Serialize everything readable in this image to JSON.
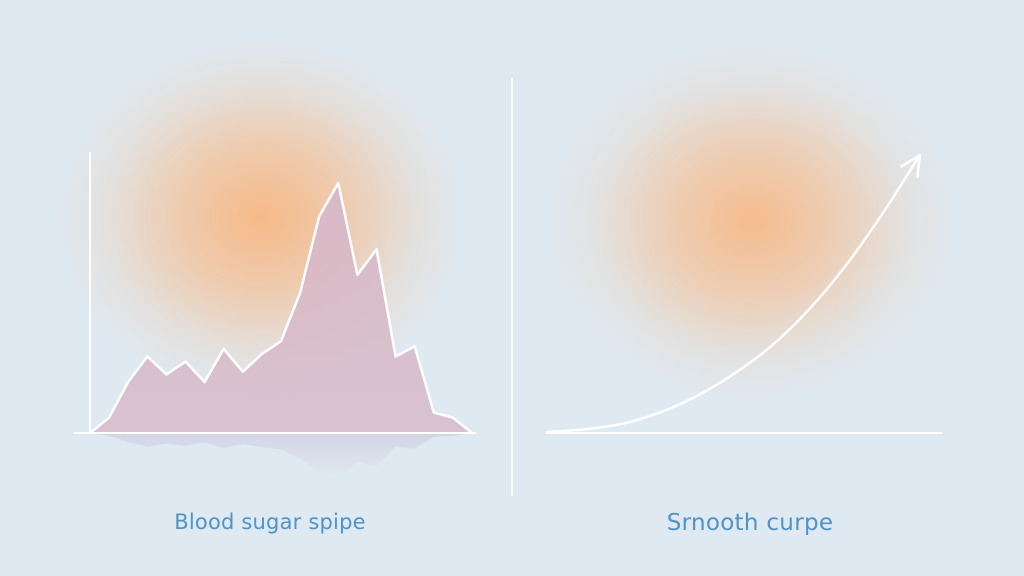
{
  "left_panel": {
    "caption": "Blood sugar spipe",
    "chart_data": {
      "type": "area",
      "x": [
        0,
        1,
        2,
        3,
        4,
        5,
        6,
        7,
        8,
        9,
        10,
        11,
        12,
        13,
        14,
        15,
        16,
        17,
        18,
        19,
        20
      ],
      "values": [
        0,
        6,
        20,
        30,
        23,
        28,
        20,
        33,
        24,
        31,
        36,
        55,
        85,
        98,
        62,
        72,
        30,
        34,
        8,
        6,
        0
      ],
      "title": "",
      "xlabel": "",
      "ylabel": "",
      "ylim": [
        0,
        100
      ],
      "grid": false
    }
  },
  "right_panel": {
    "caption": "Srnooth curpe",
    "chart_data": {
      "type": "line",
      "x": [
        0,
        1,
        2,
        3,
        4,
        5,
        6,
        7,
        8,
        9,
        10
      ],
      "values": [
        0,
        1,
        3,
        7,
        13,
        21,
        31,
        44,
        60,
        79,
        100
      ],
      "arrow_end": true,
      "title": "",
      "xlabel": "",
      "ylabel": "",
      "ylim": [
        0,
        100
      ],
      "grid": false
    }
  },
  "colors": {
    "background": "#dfe9f1",
    "glow": "#f8b782",
    "area_fill": "#d7b9c8",
    "line": "#ffffff",
    "caption_text": "#4f93c8"
  }
}
